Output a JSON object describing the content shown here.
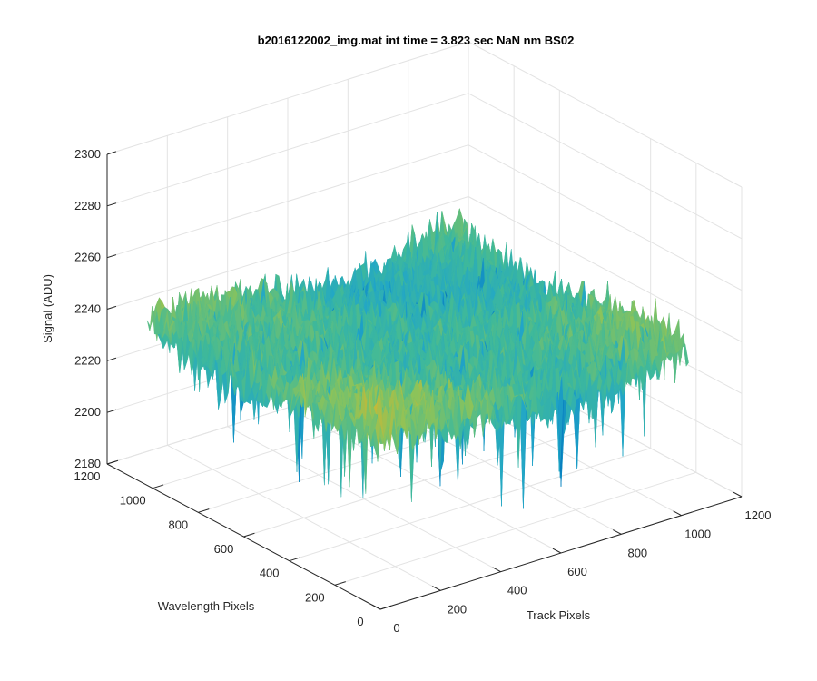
{
  "chart_data": {
    "type": "surface",
    "title": "b2016122002_img.mat int time = 3.823 sec  NaN nm BS02",
    "xlabel": "Track Pixels",
    "ylabel": "Wavelength Pixels",
    "zlabel": "Signal (ADU)",
    "xlim": [
      0,
      1200
    ],
    "ylim": [
      0,
      1200
    ],
    "zlim": [
      2180,
      2300
    ],
    "x_ticks": [
      0,
      200,
      400,
      600,
      800,
      1000,
      1200
    ],
    "y_ticks": [
      0,
      200,
      400,
      600,
      800,
      1000,
      1200
    ],
    "z_ticks": [
      2180,
      2200,
      2220,
      2240,
      2260,
      2280,
      2300
    ],
    "x_tick_labels": [
      "0",
      "200",
      "400",
      "600",
      "800",
      "1000",
      "1200"
    ],
    "y_tick_labels": [
      "0",
      "200",
      "400",
      "600",
      "800",
      "1000",
      "1200"
    ],
    "z_tick_labels": [
      "2180",
      "2200",
      "2220",
      "2240",
      "2260",
      "2280",
      "2300"
    ],
    "data_extent": {
      "x": [
        0,
        1024
      ],
      "y": [
        0,
        1024
      ]
    },
    "signal_summary": {
      "mean": 2240,
      "min": 2196,
      "max": 2284,
      "noise_std": 7
    },
    "colormap": [
      "#0072bd",
      "#21a6c8",
      "#3fb99a",
      "#8cc35a",
      "#edb120"
    ],
    "grid": true,
    "view": {
      "azimuth": -37.5,
      "elevation": 30
    }
  }
}
